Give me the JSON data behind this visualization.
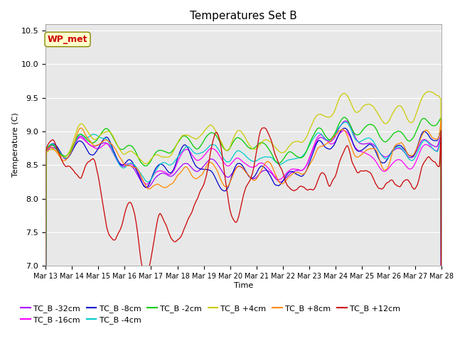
{
  "title": "Temperatures Set B",
  "xlabel": "Time",
  "ylabel": "Temperature (C)",
  "ylim": [
    7.0,
    10.6
  ],
  "yticks": [
    7.0,
    7.5,
    8.0,
    8.5,
    9.0,
    9.5,
    10.0,
    10.5
  ],
  "x_tick_labels": [
    "Mar 13",
    "Mar 14",
    "Mar 15",
    "Mar 16",
    "Mar 17",
    "Mar 18",
    "Mar 19",
    "Mar 20",
    "Mar 21",
    "Mar 22",
    "Mar 23",
    "Mar 24",
    "Mar 25",
    "Mar 26",
    "Mar 27",
    "Mar 28"
  ],
  "series_colors": [
    "#aa00ff",
    "#ff00ff",
    "#0000cc",
    "#00cccc",
    "#00cc00",
    "#cccc00",
    "#ff8800",
    "#cc0000"
  ],
  "series_labels": [
    "TC_B -32cm",
    "TC_B -16cm",
    "TC_B -8cm",
    "TC_B -4cm",
    "TC_B -2cm",
    "TC_B +4cm",
    "TC_B +8cm",
    "TC_B +12cm"
  ],
  "annotation_text": "WP_met",
  "annotation_color": "#cc0000",
  "annotation_bg": "#ffffcc",
  "plot_bg": "#e8e8e8",
  "n_points": 1500,
  "seed": 7
}
